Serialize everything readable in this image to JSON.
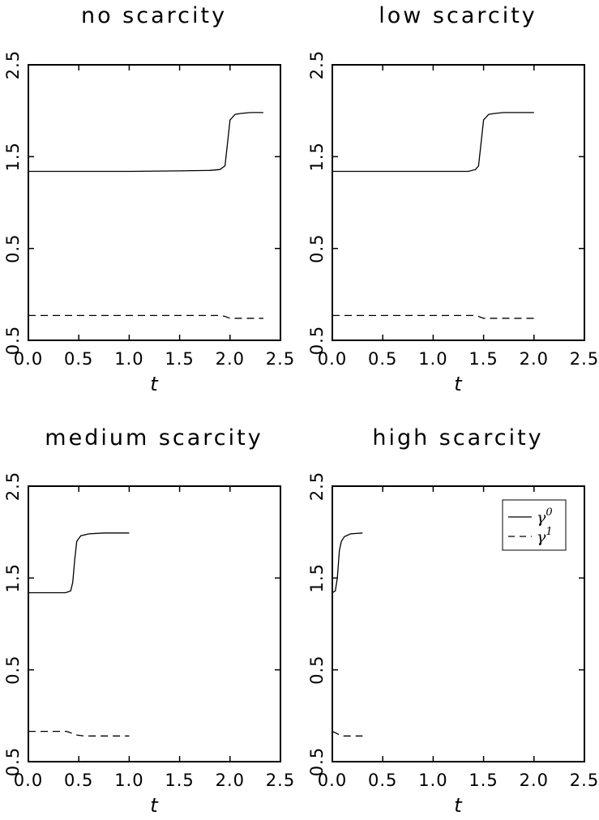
{
  "chart_data": [
    {
      "type": "line",
      "title": "no scarcity",
      "xlabel": "t",
      "ylabel": "",
      "xlim": [
        0,
        2.5
      ],
      "ylim": [
        -0.5,
        2.5
      ],
      "x_ticks": [
        "0.0",
        "0.5",
        "1.0",
        "1.5",
        "2.0",
        "2.5"
      ],
      "y_ticks": [
        "0.5",
        "0.5",
        "1.5",
        "2.5"
      ],
      "grid": false,
      "series": [
        {
          "name": "γ0",
          "style": "solid",
          "x": [
            0,
            0.5,
            1.0,
            1.5,
            1.8,
            1.9,
            1.95,
            1.97,
            2.0,
            2.05,
            2.1,
            2.2,
            2.33
          ],
          "y": [
            1.34,
            1.34,
            1.34,
            1.345,
            1.35,
            1.36,
            1.4,
            1.6,
            1.9,
            1.96,
            1.97,
            1.98,
            1.98
          ]
        },
        {
          "name": "γ1",
          "style": "dashed",
          "x": [
            0,
            0.5,
            1.0,
            1.5,
            1.9,
            1.95,
            2.0,
            2.1,
            2.33
          ],
          "y": [
            -0.23,
            -0.23,
            -0.23,
            -0.23,
            -0.23,
            -0.24,
            -0.26,
            -0.26,
            -0.26
          ]
        }
      ]
    },
    {
      "type": "line",
      "title": "low scarcity",
      "xlabel": "t",
      "ylabel": "",
      "xlim": [
        0,
        2.5
      ],
      "ylim": [
        -0.5,
        2.5
      ],
      "x_ticks": [
        "0.0",
        "0.5",
        "1.0",
        "1.5",
        "2.0",
        "2.5"
      ],
      "y_ticks": [
        "0.5",
        "0.5",
        "1.5",
        "2.5"
      ],
      "grid": false,
      "series": [
        {
          "name": "γ0",
          "style": "solid",
          "x": [
            0,
            0.5,
            1.0,
            1.35,
            1.42,
            1.45,
            1.47,
            1.5,
            1.55,
            1.6,
            1.7,
            2.0
          ],
          "y": [
            1.34,
            1.34,
            1.34,
            1.34,
            1.36,
            1.4,
            1.6,
            1.9,
            1.96,
            1.97,
            1.98,
            1.98
          ]
        },
        {
          "name": "γ1",
          "style": "dashed",
          "x": [
            0,
            0.5,
            1.0,
            1.4,
            1.45,
            1.5,
            1.6,
            2.0
          ],
          "y": [
            -0.23,
            -0.23,
            -0.23,
            -0.23,
            -0.24,
            -0.26,
            -0.26,
            -0.26
          ]
        }
      ]
    },
    {
      "type": "line",
      "title": "medium scarcity",
      "xlabel": "t",
      "ylabel": "",
      "xlim": [
        0,
        2.5
      ],
      "ylim": [
        -0.5,
        2.5
      ],
      "x_ticks": [
        "0.0",
        "0.5",
        "1.0",
        "1.5",
        "2.0",
        "2.5"
      ],
      "y_ticks": [
        "0.5",
        "0.5",
        "1.5",
        "2.5"
      ],
      "grid": false,
      "series": [
        {
          "name": "γ0",
          "style": "solid",
          "x": [
            0,
            0.2,
            0.37,
            0.42,
            0.44,
            0.46,
            0.48,
            0.52,
            0.6,
            0.75,
            1.0
          ],
          "y": [
            1.34,
            1.34,
            1.34,
            1.36,
            1.45,
            1.7,
            1.9,
            1.96,
            1.98,
            1.99,
            1.99
          ]
        },
        {
          "name": "γ1",
          "style": "dashed",
          "x": [
            0,
            0.2,
            0.38,
            0.43,
            0.48,
            0.55,
            0.75,
            1.0
          ],
          "y": [
            -0.17,
            -0.17,
            -0.17,
            -0.19,
            -0.21,
            -0.22,
            -0.22,
            -0.22
          ]
        }
      ]
    },
    {
      "type": "line",
      "title": "high scarcity",
      "xlabel": "t",
      "ylabel": "",
      "xlim": [
        0,
        2.5
      ],
      "ylim": [
        -0.5,
        2.5
      ],
      "x_ticks": [
        "0.0",
        "0.5",
        "1.0",
        "1.5",
        "2.0",
        "2.5"
      ],
      "y_ticks": [
        "0.5",
        "0.5",
        "1.5",
        "2.5"
      ],
      "grid": false,
      "legend": {
        "position": "top-right",
        "entries": [
          {
            "symbol": "γ",
            "sup": "0",
            "style": "solid"
          },
          {
            "symbol": "γ",
            "sup": "1",
            "style": "dashed"
          }
        ]
      },
      "series": [
        {
          "name": "γ0",
          "style": "solid",
          "x": [
            0,
            0.03,
            0.05,
            0.07,
            0.09,
            0.12,
            0.18,
            0.3
          ],
          "y": [
            1.34,
            1.36,
            1.5,
            1.8,
            1.9,
            1.95,
            1.98,
            1.99
          ]
        },
        {
          "name": "γ1",
          "style": "dashed",
          "x": [
            0,
            0.04,
            0.07,
            0.1,
            0.15,
            0.3
          ],
          "y": [
            -0.17,
            -0.19,
            -0.21,
            -0.22,
            -0.22,
            -0.22
          ]
        }
      ]
    }
  ]
}
